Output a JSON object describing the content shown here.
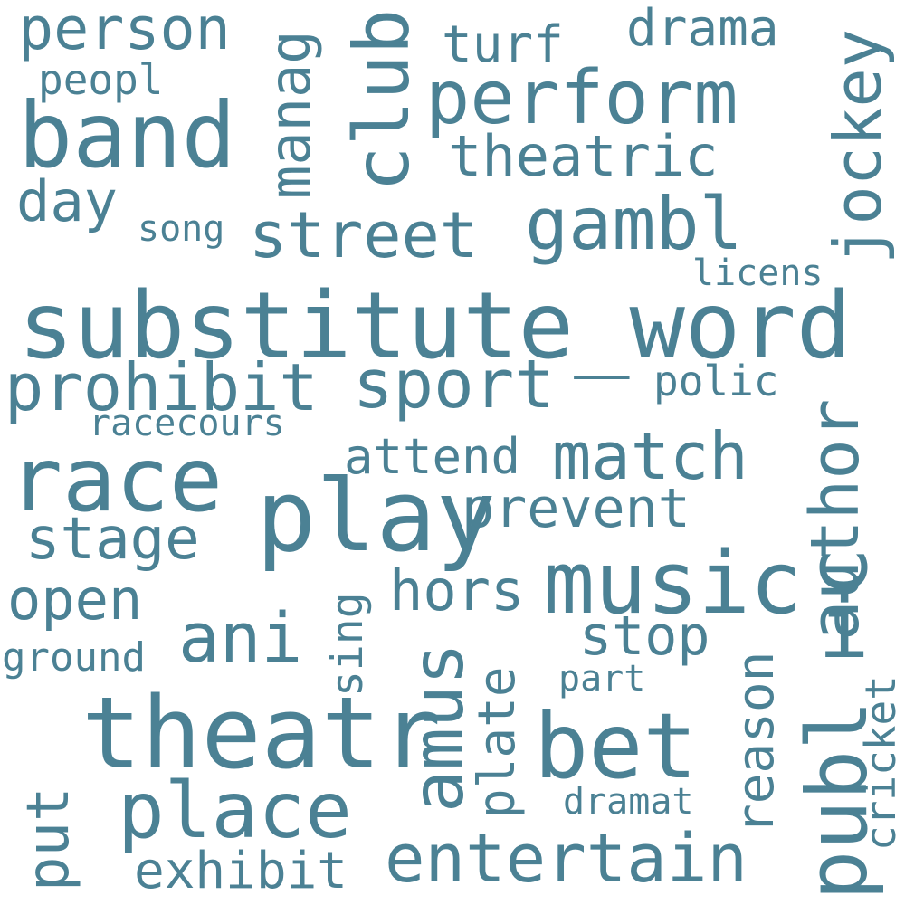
{
  "text_color": "#4b8194",
  "background": "#ffffff",
  "words": {
    "substitute_word": "substitute_word",
    "theatr": "theatr",
    "play": "play",
    "band": "band",
    "race": "race",
    "music": "music",
    "perform": "perform",
    "place": "place",
    "bet": "bet",
    "publ": "publ",
    "i": "i",
    "c": "c",
    "gambl": "gambl",
    "street": "street",
    "jockey": "jockey",
    "club": "club",
    "prohibit": "prohibit",
    "sport": "sport",
    "ani": "ani",
    "entertain": "entertain",
    "match": "match",
    "amus": "amus",
    "author": "author",
    "person": "person",
    "theatric": "theatric",
    "stage": "stage",
    "open": "open",
    "hors": "hors",
    "prevent": "prevent",
    "drama": "drama",
    "day": "day",
    "manag": "manag",
    "stop": "stop",
    "put": "put",
    "exhibit": "exhibit",
    "turf": "turf",
    "attend": "attend",
    "plate": "plate",
    "reason": "reason",
    "peopl": "peopl",
    "polic": "polic",
    "sing": "sing",
    "ground": "ground",
    "racecours": "racecours",
    "song": "song",
    "licens": "licens",
    "part": "part",
    "dramat": "dramat",
    "cricket": "cricket"
  }
}
